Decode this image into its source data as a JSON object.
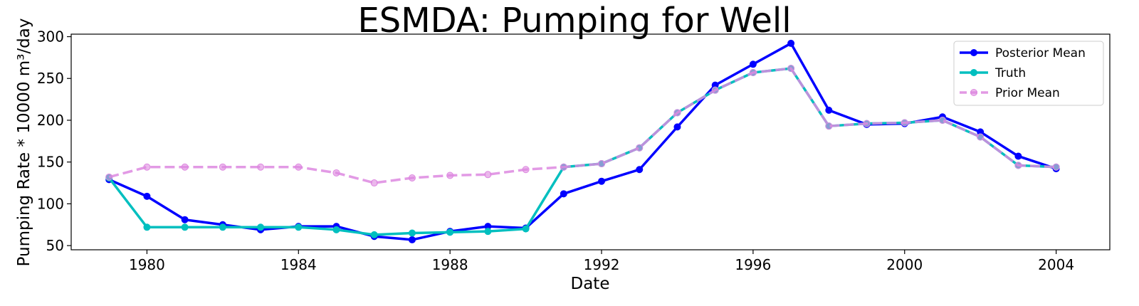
{
  "chart_data": {
    "type": "line",
    "title": "ESMDA: Pumping for Well",
    "xlabel": "Date",
    "ylabel": "Pumping Rate * 10000 m³/day",
    "x": [
      1979,
      1980,
      1981,
      1982,
      1983,
      1984,
      1985,
      1986,
      1987,
      1988,
      1989,
      1990,
      1991,
      1992,
      1993,
      1994,
      1995,
      1996,
      1997,
      1998,
      1999,
      2000,
      2001,
      2002,
      2003,
      2004
    ],
    "x_ticks": [
      "1980",
      "1984",
      "1988",
      "1992",
      "1996",
      "2000",
      "2004"
    ],
    "y_ticks": [
      "50",
      "100",
      "150",
      "200",
      "250",
      "300"
    ],
    "xlim": [
      "1978-01-01",
      "2005-06-01"
    ],
    "ylim": [
      45,
      303
    ],
    "grid": false,
    "legend_position": "top-right",
    "series": [
      {
        "name": "Posterior Mean",
        "color": "#0000ff",
        "style": "solid",
        "values": [
          129,
          109,
          81,
          75,
          69,
          73,
          73,
          61,
          57,
          67,
          73,
          71,
          112,
          127,
          141,
          192,
          242,
          267,
          292,
          212,
          195,
          196,
          204,
          186,
          157,
          142
        ]
      },
      {
        "name": "Truth",
        "color": "#00bfbf",
        "style": "solid",
        "values": [
          131,
          72,
          72,
          72,
          72,
          72,
          69,
          63,
          65,
          66,
          67,
          70,
          144,
          148,
          167,
          209,
          236,
          257,
          262,
          193,
          196,
          197,
          200,
          180,
          146,
          144
        ]
      },
      {
        "name": "Prior Mean",
        "color": "#dd88e0",
        "style": "dashed",
        "values": [
          132,
          144,
          144,
          144,
          144,
          144,
          137,
          125,
          131,
          134,
          135,
          141,
          144,
          148,
          167,
          209,
          236,
          257,
          262,
          193,
          196,
          197,
          200,
          180,
          146,
          144
        ]
      }
    ]
  }
}
